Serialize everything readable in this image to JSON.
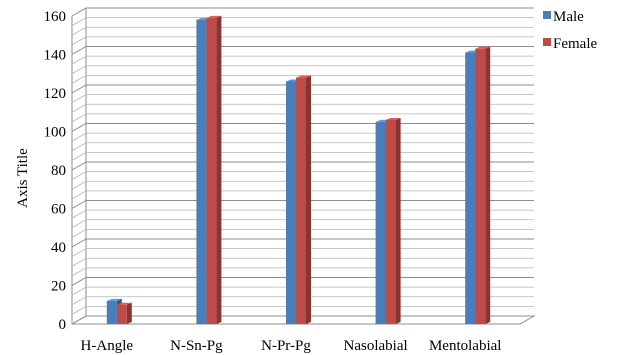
{
  "chart_data": {
    "type": "bar",
    "title": "",
    "xlabel": "",
    "ylabel": "Axis Title",
    "categories": [
      "H-Angle",
      "N-Sn-Pg",
      "N-Pr-Pg",
      "Nasolabial",
      "Mentolabial"
    ],
    "series": [
      {
        "name": "Male",
        "values": [
          12,
          158,
          126,
          105,
          141
        ],
        "color": "#4a7ebb"
      },
      {
        "name": "Female",
        "values": [
          10,
          159,
          128,
          106,
          143
        ],
        "color": "#be4b48"
      }
    ],
    "ylim": [
      0,
      160
    ],
    "yticks": [
      0,
      20,
      40,
      60,
      80,
      100,
      120,
      140,
      160
    ],
    "grid": true,
    "three_d": true,
    "legend_position": "right"
  }
}
